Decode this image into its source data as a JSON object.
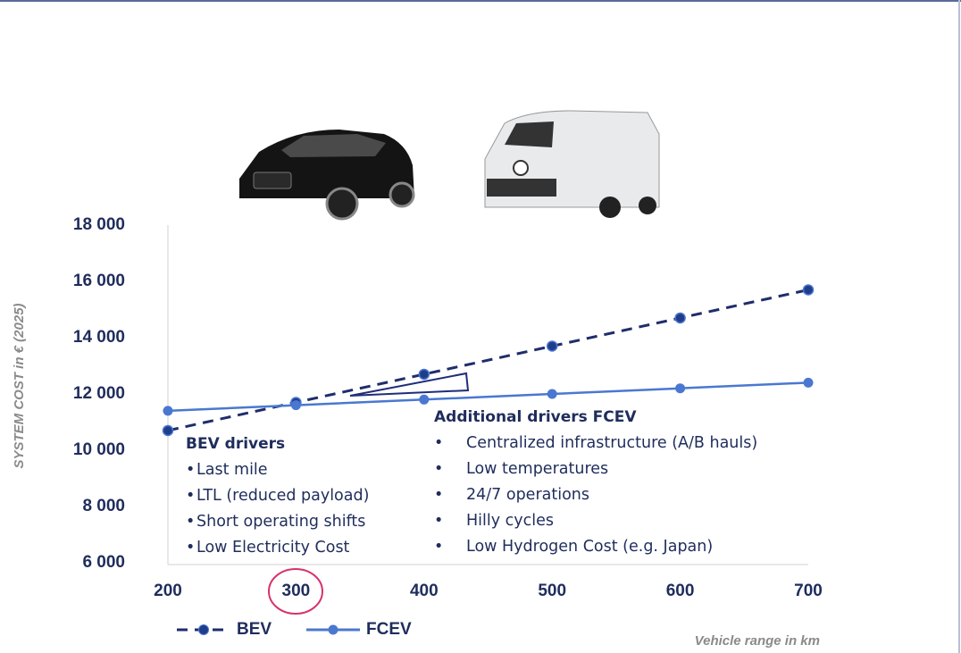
{
  "chart_data": {
    "type": "line",
    "y_label": "SYSTEM COST in € (2025)",
    "x_label": "Vehicle range in km",
    "x": [
      200,
      300,
      400,
      500,
      600,
      700
    ],
    "xlim": [
      200,
      700
    ],
    "xticks": [
      200,
      300,
      400,
      500,
      600,
      700
    ],
    "ylim": [
      6000,
      18000
    ],
    "yticks": [
      {
        "value": 6000,
        "label": "6 000"
      },
      {
        "value": 8000,
        "label": "8 000"
      },
      {
        "value": 10000,
        "label": "10 000"
      },
      {
        "value": 12000,
        "label": "12 000"
      },
      {
        "value": 14000,
        "label": "14 000"
      },
      {
        "value": 16000,
        "label": "16 000"
      },
      {
        "value": 18000,
        "label": "18 000"
      }
    ],
    "series": [
      {
        "name": "BEV",
        "color": "#1f2d6b",
        "dashed": true,
        "values": [
          10700,
          11700,
          12700,
          13700,
          14700,
          15700
        ]
      },
      {
        "name": "FCEV",
        "color": "#4a78d0",
        "dashed": false,
        "values": [
          11400,
          11600,
          11800,
          12000,
          12200,
          12400
        ]
      }
    ],
    "annotations": [
      {
        "title": "BEV drivers",
        "items": [
          "Last mile",
          "LTL (reduced payload)",
          "Short operating shifts",
          "Low Electricity Cost"
        ]
      },
      {
        "title": "Additional drivers FCEV",
        "items": [
          "Centralized infrastructure (A/B hauls)",
          "Low temperatures",
          "24/7 operations",
          "Hilly cycles",
          "Low Hydrogen Cost (e.g. Japan)"
        ]
      }
    ]
  }
}
